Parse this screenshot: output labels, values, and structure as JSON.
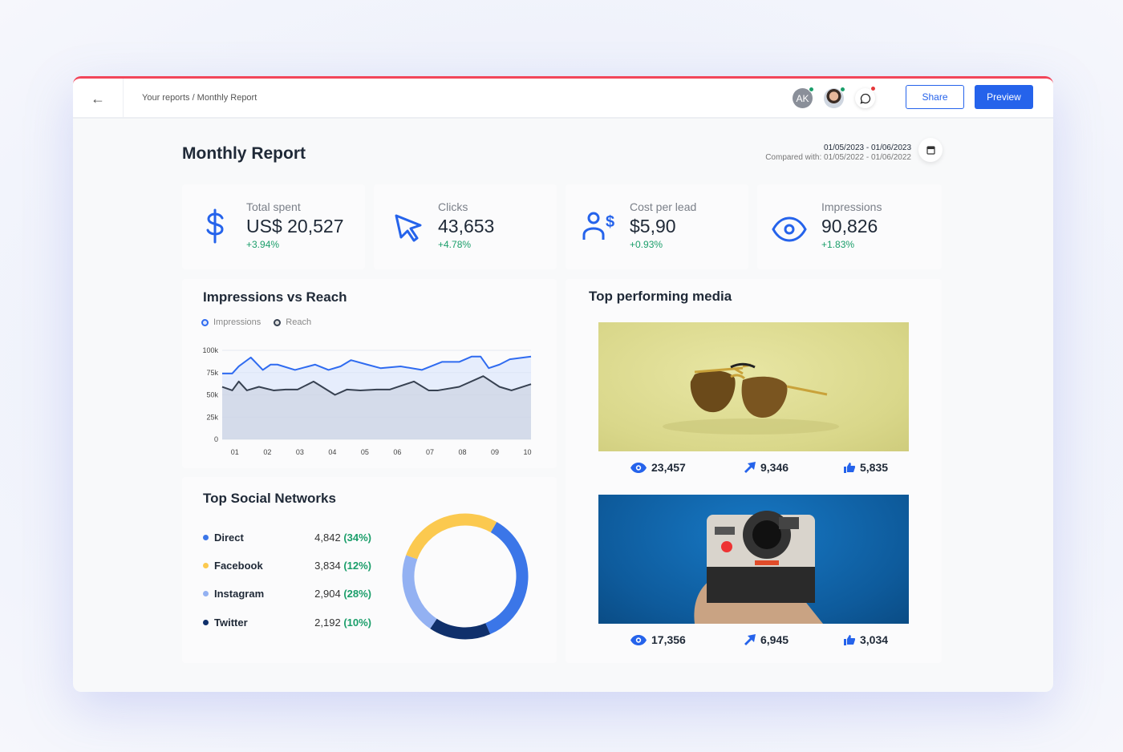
{
  "header": {
    "breadcrumb": "Your reports / Monthly Report",
    "avatar_initials": "AK",
    "share_label": "Share",
    "preview_label": "Preview"
  },
  "page": {
    "title": "Monthly Report",
    "date_range": "01/05/2023 - 01/06/2023",
    "compared": "Compared with: 01/05/2022 - 01/06/2022"
  },
  "kpis": [
    {
      "label": "Total spent",
      "value": "US$ 20,527",
      "change": "+3.94%",
      "icon": "dollar-icon"
    },
    {
      "label": "Clicks",
      "value": "43,653",
      "change": "+4.78%",
      "icon": "cursor-icon"
    },
    {
      "label": "Cost per lead",
      "value": "$5,90",
      "change": "+0.93%",
      "icon": "user-dollar-icon"
    },
    {
      "label": "Impressions",
      "value": "90,826",
      "change": "+1.83%",
      "icon": "eye-icon"
    }
  ],
  "impressions_chart": {
    "title": "Impressions vs Reach"
  },
  "social": {
    "title": "Top Social Networks",
    "items": [
      {
        "name": "Direct",
        "value": "4,842",
        "pct": "(34%)",
        "color": "#3b76e8"
      },
      {
        "name": "Facebook",
        "value": "3,834",
        "pct": "(12%)",
        "color": "#fbc94f"
      },
      {
        "name": "Instagram",
        "value": "2,904",
        "pct": "(28%)",
        "color": "#93b1f2"
      },
      {
        "name": "Twitter",
        "value": "2,192",
        "pct": "(10%)",
        "color": "#10306b"
      }
    ]
  },
  "media": {
    "title": "Top performing media",
    "items": [
      {
        "views": "23,457",
        "clicks": "9,346",
        "likes": "5,835"
      },
      {
        "views": "17,356",
        "clicks": "6,945",
        "likes": "3,034"
      }
    ]
  },
  "chart_data": {
    "type": "area",
    "legend": [
      "Impressions",
      "Reach"
    ],
    "legend_position": "top-left",
    "colors": {
      "Impressions": "#2f6bf0",
      "Reach": "#374151"
    },
    "ylim": [
      0,
      100000
    ],
    "yticks": [
      "0",
      "25k",
      "50k",
      "75k",
      "100k"
    ],
    "xticks": [
      "01",
      "02",
      "03",
      "04",
      "05",
      "06",
      "07",
      "08",
      "09",
      "10"
    ],
    "xlim": [
      0.61,
      10.11
    ],
    "grid": true,
    "series": [
      {
        "name": "Impressions",
        "points": [
          [
            0.61,
            74
          ],
          [
            0.92,
            74
          ],
          [
            1.12,
            82
          ],
          [
            1.49,
            92
          ],
          [
            1.86,
            78
          ],
          [
            2.1,
            84
          ],
          [
            2.31,
            84
          ],
          [
            2.85,
            78
          ],
          [
            3.47,
            84
          ],
          [
            3.88,
            78
          ],
          [
            4.25,
            82
          ],
          [
            4.57,
            89
          ],
          [
            5.07,
            84
          ],
          [
            5.48,
            80
          ],
          [
            6.1,
            82
          ],
          [
            6.75,
            78
          ],
          [
            7.37,
            87
          ],
          [
            7.9,
            87
          ],
          [
            8.28,
            93
          ],
          [
            8.56,
            93
          ],
          [
            8.81,
            80
          ],
          [
            9.14,
            84
          ],
          [
            9.46,
            90
          ],
          [
            10.11,
            93
          ]
        ]
      },
      {
        "name": "Reach",
        "points": [
          [
            0.61,
            59
          ],
          [
            0.92,
            55
          ],
          [
            1.12,
            65
          ],
          [
            1.37,
            55
          ],
          [
            1.74,
            59
          ],
          [
            2.19,
            55
          ],
          [
            2.56,
            56
          ],
          [
            2.93,
            56
          ],
          [
            3.42,
            65
          ],
          [
            4.08,
            50
          ],
          [
            4.45,
            56
          ],
          [
            4.86,
            55
          ],
          [
            5.36,
            56
          ],
          [
            5.77,
            56
          ],
          [
            6.51,
            65
          ],
          [
            6.96,
            55
          ],
          [
            7.25,
            55
          ],
          [
            7.9,
            59
          ],
          [
            8.64,
            71
          ],
          [
            9.14,
            59
          ],
          [
            9.51,
            55
          ],
          [
            10.11,
            62
          ]
        ]
      }
    ],
    "y_unit": "k"
  }
}
